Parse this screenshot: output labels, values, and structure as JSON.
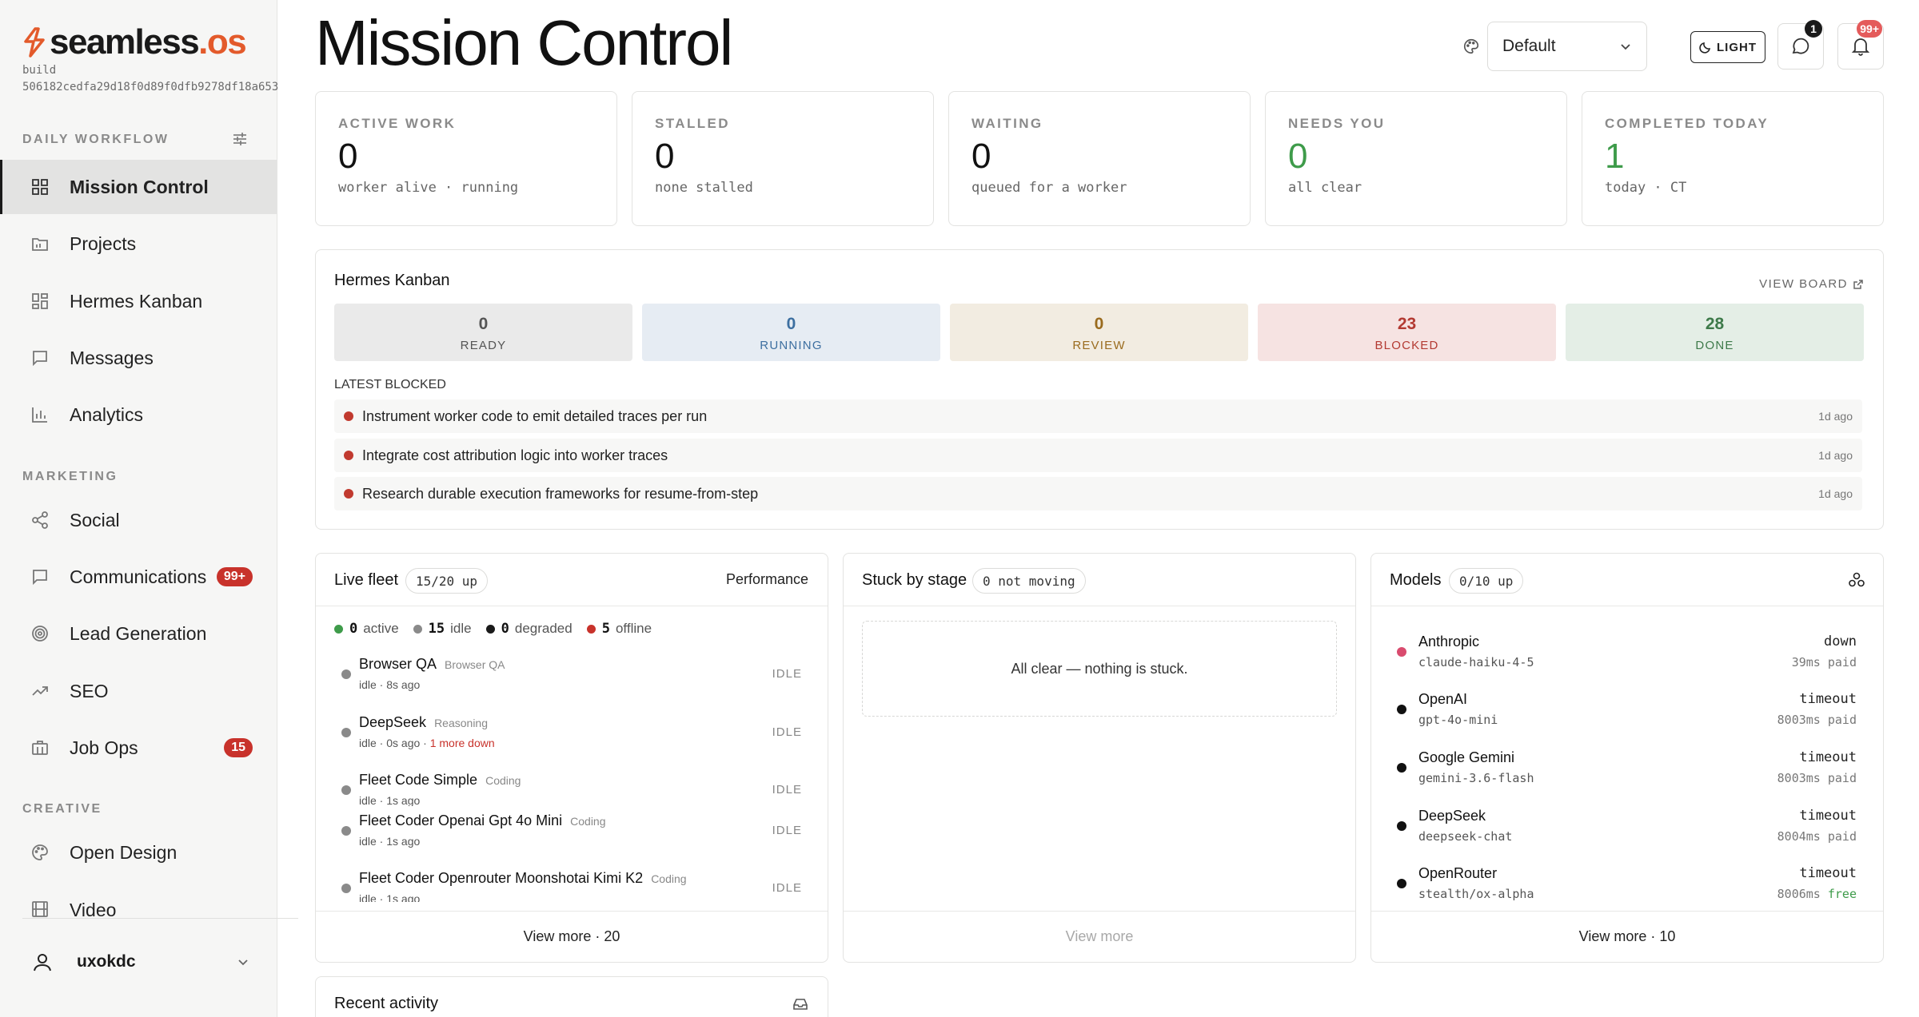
{
  "brand": {
    "name": "seamless",
    "suffix": ".os"
  },
  "build": "build 506182cedfa29d18f0d89f0dfb9278df18a653",
  "sidebar": {
    "sections": [
      {
        "label": "DAILY WORKFLOW"
      },
      {
        "label": "MARKETING"
      },
      {
        "label": "CREATIVE"
      }
    ],
    "items": [
      {
        "label": "Mission Control",
        "icon": "grid-icon"
      },
      {
        "label": "Projects",
        "icon": "folder-icon"
      },
      {
        "label": "Hermes Kanban",
        "icon": "kanban-icon"
      },
      {
        "label": "Messages",
        "icon": "message-icon"
      },
      {
        "label": "Analytics",
        "icon": "bar-chart-icon"
      },
      {
        "label": "Social",
        "icon": "share-icon"
      },
      {
        "label": "Communications",
        "icon": "message-icon",
        "badge": "99+"
      },
      {
        "label": "Lead Generation",
        "icon": "target-icon"
      },
      {
        "label": "SEO",
        "icon": "trending-icon"
      },
      {
        "label": "Job Ops",
        "icon": "briefcase-icon",
        "badge": "15"
      },
      {
        "label": "Open Design",
        "icon": "palette-icon"
      },
      {
        "label": "Video",
        "icon": "film-icon"
      }
    ],
    "user": {
      "name": "uxokdc"
    }
  },
  "header": {
    "title": "Mission Control",
    "theme_select": "Default",
    "light_button": "LIGHT",
    "messages_count": "1",
    "notifications_count": "99+"
  },
  "stats": [
    {
      "label": "ACTIVE WORK",
      "value": "0",
      "sub": "worker alive · running"
    },
    {
      "label": "STALLED",
      "value": "0",
      "sub": "none stalled"
    },
    {
      "label": "WAITING",
      "value": "0",
      "sub": "queued for a worker"
    },
    {
      "label": "NEEDS YOU",
      "value": "0",
      "sub": "all clear"
    },
    {
      "label": "COMPLETED TODAY",
      "value": "1",
      "sub": "today · CT"
    }
  ],
  "kanban": {
    "title": "Hermes Kanban",
    "view_board": "VIEW BOARD",
    "lanes": [
      {
        "count": "0",
        "label": "READY"
      },
      {
        "count": "0",
        "label": "RUNNING"
      },
      {
        "count": "0",
        "label": "REVIEW"
      },
      {
        "count": "23",
        "label": "BLOCKED"
      },
      {
        "count": "28",
        "label": "DONE"
      }
    ],
    "latest_label": "LATEST BLOCKED",
    "blocked": [
      {
        "text": "Instrument worker code to emit detailed traces per run",
        "time": "1d ago"
      },
      {
        "text": "Integrate cost attribution logic into worker traces",
        "time": "1d ago"
      },
      {
        "text": "Research durable execution frameworks for resume-from-step",
        "time": "1d ago"
      }
    ]
  },
  "fleet": {
    "title": "Live fleet",
    "pill": "15/20 up",
    "link": "Performance",
    "legend": [
      {
        "count": "0",
        "label": "active",
        "color": "#3e9b4a"
      },
      {
        "count": "15",
        "label": "idle",
        "color": "#8a8a8a"
      },
      {
        "count": "0",
        "label": "degraded",
        "color": "#1a1a1a"
      },
      {
        "count": "5",
        "label": "offline",
        "color": "#c8322b"
      }
    ],
    "rows": [
      {
        "name": "Browser QA",
        "tag": "Browser QA",
        "sub": "idle · 8s ago",
        "extra": "",
        "state": "IDLE"
      },
      {
        "name": "DeepSeek",
        "tag": "Reasoning",
        "sub": "idle · 0s ago · ",
        "extra": "1 more down",
        "state": "IDLE"
      },
      {
        "name": "Fleet Code Simple",
        "tag": "Coding",
        "sub": "idle · 1s ago",
        "extra": "",
        "state": "IDLE"
      },
      {
        "name": "Fleet Coder Openai Gpt 4o Mini",
        "tag": "Coding",
        "sub": "idle · 1s ago",
        "extra": "",
        "state": "IDLE"
      },
      {
        "name": "Fleet Coder Openrouter Moonshotai Kimi K2",
        "tag": "Coding",
        "sub": "idle · 1s ago",
        "extra": "",
        "state": "IDLE"
      }
    ],
    "footer": "View more · 20"
  },
  "stuck": {
    "title": "Stuck by stage",
    "pill": "0 not moving",
    "empty": "All clear — nothing is stuck.",
    "footer": "View more"
  },
  "models": {
    "title": "Models",
    "pill": "0/10 up",
    "rows": [
      {
        "name": "Anthropic",
        "id": "claude-haiku-4-5",
        "status": "down",
        "latency": "39ms",
        "cost": "paid",
        "dot": "pink"
      },
      {
        "name": "OpenAI",
        "id": "gpt-4o-mini",
        "status": "timeout",
        "latency": "8003ms",
        "cost": "paid",
        "dot": "dark"
      },
      {
        "name": "Google Gemini",
        "id": "gemini-3.6-flash",
        "status": "timeout",
        "latency": "8003ms",
        "cost": "paid",
        "dot": "dark"
      },
      {
        "name": "DeepSeek",
        "id": "deepseek-chat",
        "status": "timeout",
        "latency": "8004ms",
        "cost": "paid",
        "dot": "dark"
      },
      {
        "name": "OpenRouter",
        "id": "stealth/ox-alpha",
        "status": "timeout",
        "latency": "8006ms",
        "cost": "free",
        "dot": "dark"
      }
    ],
    "footer": "View more · 10"
  },
  "recent": {
    "title": "Recent activity"
  }
}
